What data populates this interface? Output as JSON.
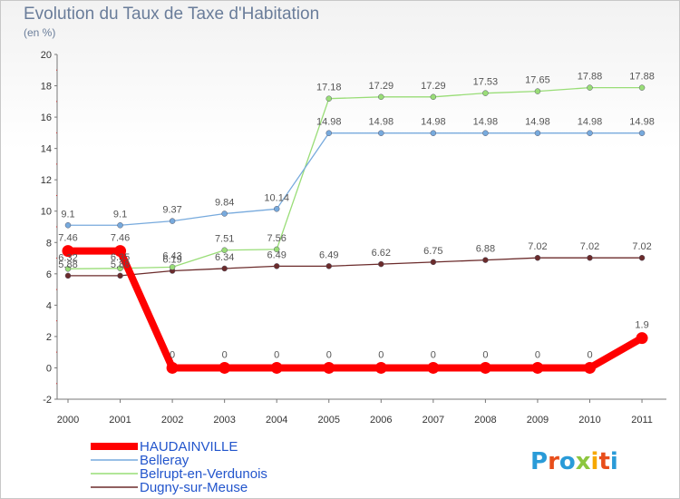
{
  "chart_data": {
    "type": "line",
    "title": "Evolution du Taux de Taxe d'Habitation",
    "subtitle": "(en %)",
    "x": [
      "2000",
      "2001",
      "2002",
      "2003",
      "2004",
      "2005",
      "2006",
      "2007",
      "2008",
      "2009",
      "2010",
      "2011"
    ],
    "ylim": [
      -2,
      20
    ],
    "yticks": [
      "-2",
      "0",
      "2",
      "4",
      "6",
      "8",
      "10",
      "12",
      "14",
      "16",
      "18",
      "20"
    ],
    "grid": false,
    "legend_position": "bottom-left",
    "series": [
      {
        "name": "Dugny-sur-Meuse",
        "color": "#6b2b2b",
        "values": [
          5.88,
          5.88,
          6.19,
          6.34,
          6.49,
          6.49,
          6.62,
          6.75,
          6.88,
          7.02,
          7.02,
          7.02
        ],
        "labels": [
          "5.88",
          "5.88",
          "6.19",
          "6.34",
          "6.49",
          "6.49",
          "6.62",
          "6.75",
          "6.88",
          "7.02",
          "7.02",
          "7.02"
        ]
      },
      {
        "name": "Belrupt-en-Verdunois",
        "color": "#99dd77",
        "values": [
          6.32,
          6.35,
          6.43,
          7.51,
          7.56,
          17.18,
          17.29,
          17.29,
          17.53,
          17.65,
          17.88,
          17.88
        ],
        "labels": [
          "6.32",
          "6.35",
          "6.43",
          "7.51",
          "7.56",
          "17.18",
          "17.29",
          "17.29",
          "17.53",
          "17.65",
          "17.88",
          "17.88"
        ]
      },
      {
        "name": "Belleray",
        "color": "#77aadd",
        "values": [
          9.1,
          9.1,
          9.37,
          9.84,
          10.14,
          14.98,
          14.98,
          14.98,
          14.98,
          14.98,
          14.98,
          14.98
        ],
        "labels": [
          "9.1",
          "9.1",
          "9.37",
          "9.84",
          "10.14",
          "14.98",
          "14.98",
          "14.98",
          "14.98",
          "14.98",
          "14.98",
          "14.98"
        ]
      },
      {
        "name": "HAUDAINVILLE",
        "color": "#ff0000",
        "values": [
          7.46,
          7.46,
          0,
          0,
          0,
          0,
          0,
          0,
          0,
          0,
          0,
          1.9
        ],
        "labels": [
          "7.46",
          "7.46",
          "0",
          "0",
          "0",
          "0",
          "0",
          "0",
          "0",
          "0",
          "0",
          "1.9"
        ]
      }
    ],
    "legend": [
      {
        "name": "HAUDAINVILLE",
        "color": "#ff0000",
        "text_color": "#2255cc"
      },
      {
        "name": "Belleray",
        "color": "#77aadd",
        "text_color": "#2255cc"
      },
      {
        "name": "Belrupt-en-Verdunois",
        "color": "#99dd77",
        "text_color": "#2255cc"
      },
      {
        "name": "Dugny-sur-Meuse",
        "color": "#6b2b2b",
        "text_color": "#2255cc"
      }
    ]
  },
  "logo": {
    "text": "Proxiti"
  }
}
